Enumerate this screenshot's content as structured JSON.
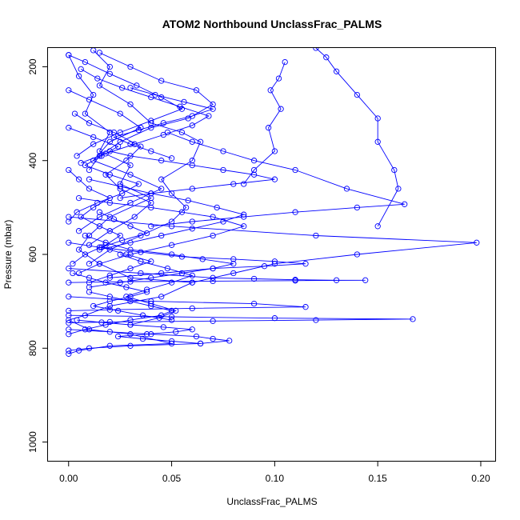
{
  "chart_data": {
    "type": "line",
    "title": "ATOM2 Northbound UnclassFrac_PALMS",
    "xlabel": "UnclassFrac_PALMS",
    "ylabel": "Pressure (mbar)",
    "xlim": [
      -0.01,
      0.207
    ],
    "ylim": [
      1040,
      160
    ],
    "y_reversed": true,
    "x_ticks": [
      "0.00",
      "0.05",
      "0.10",
      "0.15",
      "0.20"
    ],
    "x_tick_values": [
      0.0,
      0.05,
      0.1,
      0.15,
      0.2
    ],
    "y_ticks": [
      "200",
      "400",
      "600",
      "800",
      "1000"
    ],
    "y_tick_values": [
      200,
      400,
      600,
      800,
      1000
    ],
    "grid": false,
    "legend": "none",
    "marker": "open-circle",
    "color": "#0000ff",
    "series": [
      {
        "x": [
          0.0,
          0.005,
          0.012,
          0.008,
          0.02,
          0.015,
          0.03,
          0.025,
          0.04,
          0.02,
          0.01,
          0.005,
          0.015,
          0.03,
          0.06,
          0.045,
          0.02,
          0.008,
          0.0,
          0.01,
          0.03,
          0.05,
          0.02,
          0.005,
          0.0
        ],
        "y": [
          175,
          220,
          260,
          300,
          340,
          380,
          410,
          450,
          480,
          520,
          560,
          590,
          620,
          650,
          660,
          690,
          710,
          730,
          740,
          760,
          770,
          790,
          795,
          805,
          812
        ]
      },
      {
        "x": [
          0.105,
          0.102,
          0.098,
          0.103,
          0.097,
          0.1,
          0.09,
          0.085
        ],
        "y": [
          190,
          225,
          250,
          290,
          330,
          380,
          420,
          450
        ]
      },
      {
        "x": [
          0.12,
          0.125,
          0.13,
          0.14,
          0.15,
          0.15,
          0.158,
          0.16,
          0.15
        ],
        "y": [
          160,
          180,
          210,
          260,
          310,
          360,
          420,
          460,
          540
        ]
      },
      {
        "x": [
          0.0,
          0.05,
          0.12,
          0.198,
          0.14,
          0.1,
          0.08,
          0.06
        ],
        "y": [
          520,
          540,
          560,
          575,
          600,
          620,
          640,
          660
        ]
      },
      {
        "x": [
          0.0,
          0.035,
          0.07,
          0.09,
          0.11,
          0.13,
          0.144,
          0.11,
          0.07,
          0.03,
          0.0
        ],
        "y": [
          630,
          640,
          650,
          652,
          654,
          655,
          655,
          656,
          657,
          658,
          660
        ]
      },
      {
        "x": [
          0.0,
          0.04,
          0.09,
          0.115,
          0.06,
          0.02,
          0.0
        ],
        "y": [
          690,
          700,
          705,
          712,
          715,
          718,
          720
        ]
      },
      {
        "x": [
          0.0,
          0.05,
          0.1,
          0.167,
          0.12,
          0.07,
          0.02,
          0.0
        ],
        "y": [
          730,
          733,
          736,
          738,
          740,
          742,
          744,
          746
        ]
      },
      {
        "x": [
          0.0,
          0.02,
          0.04,
          0.062,
          0.07,
          0.078,
          0.064,
          0.03,
          0.01,
          0.0
        ],
        "y": [
          760,
          765,
          770,
          775,
          780,
          784,
          790,
          795,
          800,
          805
        ]
      },
      {
        "x": [
          0.012,
          0.02,
          0.015,
          0.03,
          0.04,
          0.055,
          0.064,
          0.06,
          0.045,
          0.05,
          0.057,
          0.05,
          0.035,
          0.02,
          0.01
        ],
        "y": [
          165,
          200,
          240,
          280,
          320,
          340,
          360,
          400,
          440,
          470,
          500,
          530,
          560,
          590,
          620
        ]
      },
      {
        "x": [
          0.048,
          0.06,
          0.075,
          0.09,
          0.11,
          0.135,
          0.163,
          0.14,
          0.11,
          0.085,
          0.06,
          0.04
        ],
        "y": [
          340,
          360,
          380,
          400,
          420,
          460,
          493,
          500,
          510,
          520,
          530,
          540
        ]
      },
      {
        "x": [
          0.005,
          0.02,
          0.04,
          0.055,
          0.07,
          0.085,
          0.07,
          0.05,
          0.03,
          0.015,
          0.005
        ],
        "y": [
          480,
          490,
          500,
          510,
          520,
          540,
          560,
          580,
          600,
          620,
          640
        ]
      },
      {
        "x": [
          0.015,
          0.03,
          0.045,
          0.062,
          0.07,
          0.058,
          0.04,
          0.025,
          0.015,
          0.01
        ],
        "y": [
          170,
          200,
          230,
          250,
          280,
          310,
          330,
          360,
          390,
          420
        ]
      },
      {
        "x": [
          0.0,
          0.01,
          0.025,
          0.035,
          0.02,
          0.012,
          0.03,
          0.045,
          0.03,
          0.015,
          0.005
        ],
        "y": [
          250,
          270,
          300,
          330,
          360,
          400,
          430,
          460,
          490,
          520,
          550
        ]
      },
      {
        "x": [
          0.008,
          0.018,
          0.03,
          0.05,
          0.065,
          0.08,
          0.07,
          0.055,
          0.04,
          0.025,
          0.01
        ],
        "y": [
          560,
          575,
          590,
          600,
          610,
          620,
          630,
          640,
          650,
          660,
          670
        ]
      },
      {
        "x": [
          0.0,
          0.015,
          0.035,
          0.055,
          0.08,
          0.1,
          0.115,
          0.095,
          0.07,
          0.045,
          0.02
        ],
        "y": [
          575,
          585,
          595,
          605,
          610,
          615,
          620,
          625,
          630,
          640,
          650
        ]
      },
      {
        "x": [
          0.003,
          0.01,
          0.022,
          0.035,
          0.028,
          0.018,
          0.025,
          0.04,
          0.032,
          0.02,
          0.01
        ],
        "y": [
          300,
          320,
          340,
          370,
          400,
          430,
          460,
          490,
          520,
          550,
          580
        ]
      },
      {
        "x": [
          0.01,
          0.02,
          0.03,
          0.04,
          0.05,
          0.045,
          0.03,
          0.018,
          0.008,
          0.0
        ],
        "y": [
          680,
          690,
          700,
          710,
          720,
          730,
          740,
          750,
          760,
          770
        ]
      },
      {
        "x": [
          0.0,
          0.008,
          0.02,
          0.033,
          0.045,
          0.055,
          0.04,
          0.025,
          0.012,
          0.004
        ],
        "y": [
          175,
          190,
          215,
          240,
          265,
          290,
          315,
          340,
          365,
          390
        ]
      },
      {
        "x": [
          0.02,
          0.03,
          0.045,
          0.06,
          0.075,
          0.09,
          0.1,
          0.08,
          0.06,
          0.04,
          0.025
        ],
        "y": [
          380,
          390,
          400,
          410,
          420,
          430,
          440,
          450,
          460,
          470,
          480
        ]
      },
      {
        "x": [
          0.0,
          0.005,
          0.01,
          0.02,
          0.012,
          0.006,
          0.015,
          0.025,
          0.018,
          0.008,
          0.002
        ],
        "y": [
          420,
          440,
          460,
          480,
          500,
          520,
          540,
          560,
          580,
          600,
          620
        ]
      },
      {
        "x": [
          0.025,
          0.035,
          0.048,
          0.06,
          0.05,
          0.038,
          0.028,
          0.04,
          0.052,
          0.044,
          0.03
        ],
        "y": [
          600,
          615,
          630,
          645,
          660,
          675,
          690,
          705,
          720,
          735,
          750
        ]
      },
      {
        "x": [
          0.006,
          0.014,
          0.026,
          0.04,
          0.054,
          0.068,
          0.06,
          0.046,
          0.032,
          0.018,
          0.006
        ],
        "y": [
          205,
          225,
          245,
          265,
          285,
          305,
          325,
          345,
          365,
          385,
          405
        ]
      },
      {
        "x": [
          0.002,
          0.01,
          0.018,
          0.028,
          0.038,
          0.03,
          0.02,
          0.012,
          0.024,
          0.036,
          0.05
        ],
        "y": [
          640,
          650,
          660,
          670,
          680,
          690,
          700,
          710,
          720,
          730,
          740
        ]
      },
      {
        "x": [
          0.01,
          0.025,
          0.04,
          0.058,
          0.072,
          0.085,
          0.075,
          0.06,
          0.045,
          0.03,
          0.015
        ],
        "y": [
          440,
          455,
          470,
          485,
          500,
          515,
          530,
          545,
          560,
          575,
          590
        ]
      },
      {
        "x": [
          0.0,
          0.012,
          0.024,
          0.016,
          0.008,
          0.02,
          0.034,
          0.026,
          0.014,
          0.004,
          0.0
        ],
        "y": [
          330,
          350,
          370,
          390,
          410,
          430,
          450,
          470,
          490,
          510,
          530
        ]
      },
      {
        "x": [
          0.004,
          0.016,
          0.03,
          0.046,
          0.06,
          0.052,
          0.038,
          0.024,
          0.036,
          0.05,
          0.064
        ],
        "y": [
          740,
          745,
          750,
          755,
          760,
          765,
          770,
          775,
          780,
          785,
          790
        ]
      },
      {
        "x": [
          0.015,
          0.022,
          0.03,
          0.038,
          0.026,
          0.016,
          0.028,
          0.04,
          0.03,
          0.02,
          0.01
        ],
        "y": [
          510,
          525,
          540,
          555,
          570,
          585,
          600,
          615,
          630,
          645,
          660
        ]
      },
      {
        "x": [
          0.03,
          0.042,
          0.056,
          0.07,
          0.06,
          0.046,
          0.034,
          0.022,
          0.03,
          0.04,
          0.05
        ],
        "y": [
          245,
          260,
          275,
          290,
          305,
          320,
          335,
          350,
          365,
          380,
          395
        ]
      }
    ]
  }
}
